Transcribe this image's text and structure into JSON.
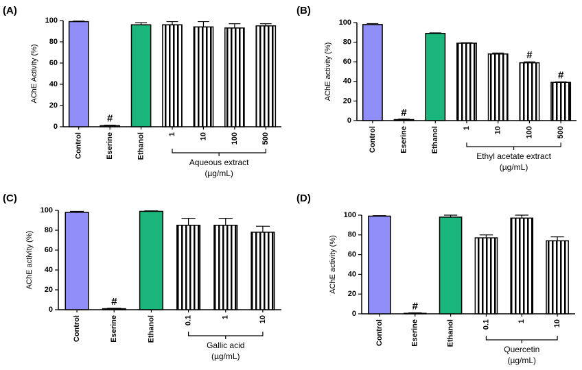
{
  "chart_data": [
    {
      "type": "bar",
      "panel_label": "(A)",
      "ylabel": "AChE Activity (%)",
      "categories": [
        "Control",
        "Eserine",
        "Ethanol",
        "1",
        "10",
        "100",
        "500"
      ],
      "values": [
        99,
        1,
        96,
        96,
        94,
        93,
        95
      ],
      "errors": [
        0.5,
        0.5,
        2,
        3,
        5,
        4,
        2
      ],
      "colors": [
        "#8f8ff7",
        "#ffffff",
        "#1ab67b",
        "#ffffff",
        "#ffffff",
        "#ffffff",
        "#ffffff"
      ],
      "hatch": [
        false,
        false,
        false,
        true,
        true,
        true,
        true
      ],
      "annotations": [
        {
          "category": "Eserine",
          "text": "#"
        }
      ],
      "group_label": "Aqueous extract",
      "group_unit": "(µg/mL)",
      "ylim": [
        0,
        100
      ],
      "yticks": [
        0,
        20,
        40,
        60,
        80,
        100
      ]
    },
    {
      "type": "bar",
      "panel_label": "(B)",
      "ylabel": "AChE activity (%)",
      "categories": [
        "Control",
        "Eserine",
        "Ethanol",
        "1",
        "10",
        "100",
        "500"
      ],
      "values": [
        98,
        1,
        89,
        79,
        68,
        59,
        39
      ],
      "errors": [
        1,
        0.5,
        0.5,
        0.5,
        1,
        1,
        0.5
      ],
      "colors": [
        "#8f8ff7",
        "#ffffff",
        "#1ab67b",
        "#ffffff",
        "#ffffff",
        "#ffffff",
        "#ffffff"
      ],
      "hatch": [
        false,
        false,
        false,
        true,
        true,
        true,
        true
      ],
      "annotations": [
        {
          "category": "Eserine",
          "text": "#"
        },
        {
          "category": "100",
          "text": "#"
        },
        {
          "category": "500",
          "text": "#"
        }
      ],
      "group_label": "Ethyl acetate extract",
      "group_unit": "(µg/mL)",
      "ylim": [
        0,
        100
      ],
      "yticks": [
        0,
        20,
        40,
        60,
        80,
        100
      ]
    },
    {
      "type": "bar",
      "panel_label": "(C)",
      "ylabel": "AChE activity (%)",
      "categories": [
        "Control",
        "Eserine",
        "Ethanol",
        "0.1",
        "1",
        "10"
      ],
      "values": [
        98,
        1,
        99,
        85,
        85,
        78
      ],
      "errors": [
        1,
        0.5,
        0.5,
        7,
        7,
        6
      ],
      "colors": [
        "#8f8ff7",
        "#ffffff",
        "#1ab67b",
        "#ffffff",
        "#ffffff",
        "#ffffff"
      ],
      "hatch": [
        false,
        false,
        false,
        true,
        true,
        true
      ],
      "annotations": [
        {
          "category": "Eserine",
          "text": "#"
        }
      ],
      "group_label": "Gallic acid",
      "group_unit": "(µg/mL)",
      "ylim": [
        0,
        100
      ],
      "yticks": [
        0,
        20,
        40,
        60,
        80,
        100
      ]
    },
    {
      "type": "bar",
      "panel_label": "(D)",
      "ylabel": "AChE activity (%)",
      "categories": [
        "Control",
        "Eserine",
        "Ethanol",
        "0.1",
        "1",
        "10"
      ],
      "values": [
        99,
        0.5,
        98,
        77,
        97,
        74
      ],
      "errors": [
        0.5,
        0.5,
        2,
        3,
        3,
        4
      ],
      "colors": [
        "#8f8ff7",
        "#ffffff",
        "#1ab67b",
        "#ffffff",
        "#ffffff",
        "#ffffff"
      ],
      "hatch": [
        false,
        false,
        false,
        true,
        true,
        true
      ],
      "annotations": [
        {
          "category": "Eserine",
          "text": "#"
        }
      ],
      "group_label": "Quercetin",
      "group_unit": "(µg/mL)",
      "ylim": [
        0,
        100
      ],
      "yticks": [
        0,
        20,
        40,
        60,
        80,
        100
      ]
    }
  ]
}
